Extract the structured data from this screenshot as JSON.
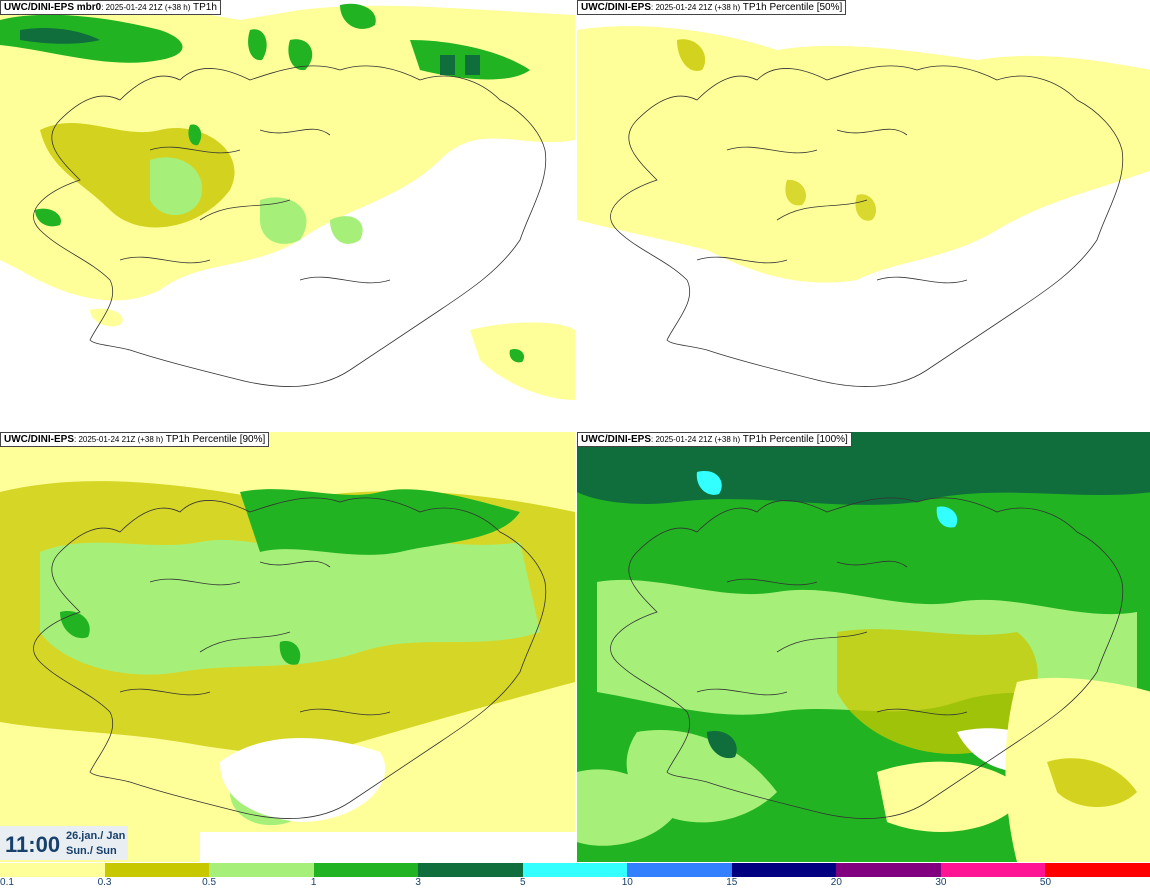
{
  "panels": [
    {
      "id": "mbr0",
      "title_bold": "UWC/DINI-EPS mbr0",
      "title_small": ": 2025-01-24 21Z (+38 h)",
      "title_rest": " TP1h"
    },
    {
      "id": "p50",
      "title_bold": "UWC/DINI-EPS",
      "title_small": ": 2025-01-24 21Z (+38 h)",
      "title_rest": " TP1h Percentile [50%]"
    },
    {
      "id": "p90",
      "title_bold": "UWC/DINI-EPS",
      "title_small": ": 2025-01-24 21Z (+38 h)",
      "title_rest": " TP1h Percentile [90%]"
    },
    {
      "id": "p100",
      "title_bold": "UWC/DINI-EPS",
      "title_small": ": 2025-01-24 21Z (+38 h)",
      "title_rest": " TP1h Percentile [100%]"
    }
  ],
  "valid_time": {
    "time": "11:00",
    "date_line1": "26.jan./ Jan",
    "date_line2": "Sun./ Sun"
  },
  "legend": {
    "colors": [
      "#ffff99",
      "#c8c800",
      "#a6f07a",
      "#22b322",
      "#0f6e3c",
      "#33ffff",
      "#3380ff",
      "#000080",
      "#800080",
      "#ff1493",
      "#ff0000"
    ],
    "labels": [
      "0.1",
      "0.3",
      "0.5",
      "1",
      "3",
      "5",
      "10",
      "15",
      "20",
      "30",
      "50"
    ]
  }
}
